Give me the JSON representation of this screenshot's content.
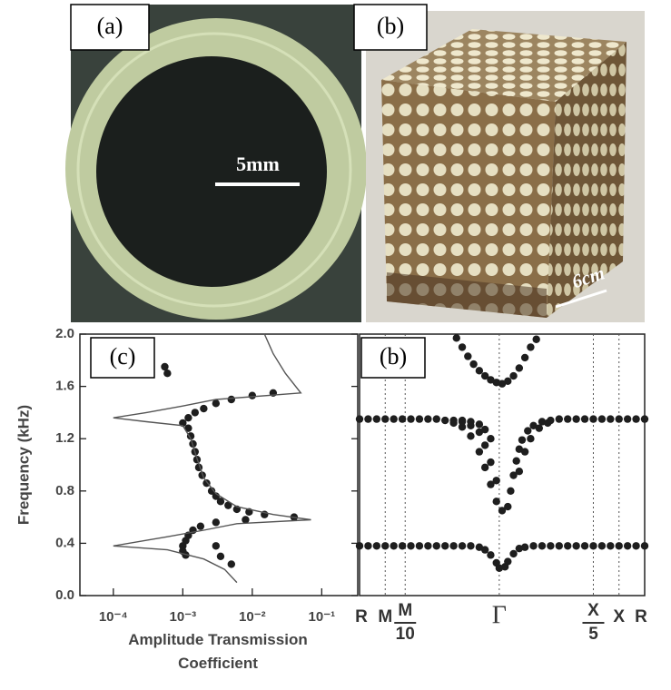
{
  "panels": [
    {
      "label": "(a)",
      "scale_bar": "5mm"
    },
    {
      "label": "(b)",
      "scale_bar": "6cm"
    }
  ],
  "chart_data": [
    {
      "type": "scatter",
      "label": "(c)",
      "xlabel": "Amplitude Transmission Coefficient",
      "ylabel": "Frequency (kHz)",
      "xscale": "log",
      "xlim": [
        3.3e-05,
        0.33
      ],
      "ylim": [
        0,
        2
      ],
      "xticks": [
        {
          "value": 0.0001,
          "label": "10⁻⁴"
        },
        {
          "value": 0.001,
          "label": "10⁻³"
        },
        {
          "value": 0.01,
          "label": "10⁻²"
        },
        {
          "value": 0.1,
          "label": "10⁻¹"
        }
      ],
      "yticks": [
        {
          "value": 0,
          "label": "0.0"
        },
        0.4,
        0.8,
        1.2,
        1.6,
        {
          "value": 2,
          "label": "2.0"
        }
      ],
      "series": [
        {
          "mode": "markers",
          "color": "#1e1e1e",
          "x": [
            0.00055,
            0.0006,
            0.02,
            0.01,
            0.005,
            0.003,
            0.002,
            0.0015,
            0.0012,
            0.001,
            0.0012,
            0.0013,
            0.0014,
            0.0015,
            0.0016,
            0.0017,
            0.0019,
            0.0022,
            0.0026,
            0.003,
            0.0035,
            0.0045,
            0.006,
            0.009,
            0.015,
            0.04,
            0.008,
            0.003,
            0.0018,
            0.0014,
            0.0012,
            0.0011,
            0.001,
            0.001,
            0.0011,
            0.003,
            0.0035,
            0.005
          ],
          "values": [
            1.75,
            1.7,
            1.55,
            1.53,
            1.5,
            1.47,
            1.43,
            1.4,
            1.36,
            1.32,
            1.28,
            1.22,
            1.16,
            1.1,
            1.04,
            0.98,
            0.92,
            0.86,
            0.8,
            0.76,
            0.72,
            0.69,
            0.66,
            0.64,
            0.62,
            0.6,
            0.58,
            0.56,
            0.53,
            0.5,
            0.46,
            0.42,
            0.38,
            0.34,
            0.31,
            0.38,
            0.3,
            0.24
          ]
        },
        {
          "mode": "lines",
          "color": "#555555",
          "x": [
            0.015,
            0.02,
            0.03,
            0.05,
            0.003,
            0.001,
            0.0003,
            0.0001,
            0.0003,
            0.001,
            0.0013,
            0.0016,
            0.002,
            0.003,
            0.006,
            0.02,
            0.07,
            0.006,
            0.002,
            0.0006,
            0.0001,
            0.0006,
            0.002,
            0.004,
            0.006
          ],
          "values": [
            2,
            1.85,
            1.7,
            1.55,
            1.5,
            1.45,
            1.4,
            1.36,
            1.33,
            1.3,
            1.2,
            1.05,
            0.9,
            0.78,
            0.68,
            0.62,
            0.58,
            0.55,
            0.5,
            0.45,
            0.38,
            0.35,
            0.28,
            0.2,
            0.1
          ]
        }
      ]
    },
    {
      "type": "scatter",
      "label": "(b)",
      "xlim": [
        0,
        100
      ],
      "ylim": [
        0,
        2
      ],
      "tick_lines": "dotted",
      "xticks": [
        {
          "value": 0,
          "label": "R"
        },
        {
          "value": 9,
          "label": "M"
        },
        {
          "value": 16,
          "label": "M/10"
        },
        {
          "value": 49,
          "label": "Γ"
        },
        {
          "value": 82,
          "label": "X/5"
        },
        {
          "value": 91,
          "label": "X"
        },
        {
          "value": 100,
          "label": "R"
        }
      ],
      "series": [
        {
          "mode": "markers",
          "color": "#1e1e1e",
          "x": [
            0,
            3,
            6,
            9,
            12,
            15,
            18,
            21,
            24,
            27,
            30,
            33,
            36,
            39,
            42,
            44,
            46,
            48,
            49,
            51,
            52,
            54,
            56,
            58,
            61,
            64,
            67,
            70,
            73,
            76,
            79,
            82,
            85,
            88,
            91,
            94,
            97,
            100,
            0,
            3,
            6,
            9,
            12,
            15,
            18,
            21,
            24,
            27,
            30,
            33,
            36,
            39,
            42,
            44,
            46,
            48,
            50,
            33,
            36,
            39,
            42,
            44,
            46,
            48,
            36,
            39,
            42,
            44,
            46,
            52,
            53,
            54,
            55,
            56,
            57,
            59,
            61,
            64,
            67,
            70,
            73,
            76,
            79,
            82,
            85,
            88,
            91,
            94,
            97,
            100,
            56,
            58,
            60,
            63,
            66,
            34,
            36,
            38,
            40,
            42,
            44,
            46,
            48,
            50,
            52,
            54,
            56,
            58,
            60,
            62
          ],
          "values": [
            0.38,
            0.38,
            0.38,
            0.38,
            0.38,
            0.38,
            0.38,
            0.38,
            0.38,
            0.38,
            0.38,
            0.38,
            0.38,
            0.38,
            0.37,
            0.35,
            0.31,
            0.25,
            0.21,
            0.22,
            0.26,
            0.32,
            0.36,
            0.37,
            0.38,
            0.38,
            0.38,
            0.38,
            0.38,
            0.38,
            0.38,
            0.38,
            0.38,
            0.38,
            0.38,
            0.38,
            0.38,
            0.38,
            1.35,
            1.35,
            1.35,
            1.35,
            1.35,
            1.35,
            1.35,
            1.35,
            1.35,
            1.35,
            1.34,
            1.32,
            1.29,
            1.22,
            1.1,
            0.98,
            0.85,
            0.72,
            0.65,
            1.34,
            1.33,
            1.3,
            1.25,
            1.15,
            1.02,
            0.88,
            1.34,
            1.33,
            1.31,
            1.27,
            1.2,
            0.68,
            0.8,
            0.92,
            1.03,
            1.12,
            1.19,
            1.26,
            1.3,
            1.33,
            1.34,
            1.35,
            1.35,
            1.35,
            1.35,
            1.35,
            1.35,
            1.35,
            1.35,
            1.35,
            1.35,
            1.35,
            0.95,
            1.1,
            1.2,
            1.28,
            1.32,
            1.97,
            1.9,
            1.83,
            1.77,
            1.72,
            1.68,
            1.65,
            1.63,
            1.62,
            1.64,
            1.68,
            1.74,
            1.82,
            1.9,
            1.96
          ]
        }
      ]
    }
  ]
}
